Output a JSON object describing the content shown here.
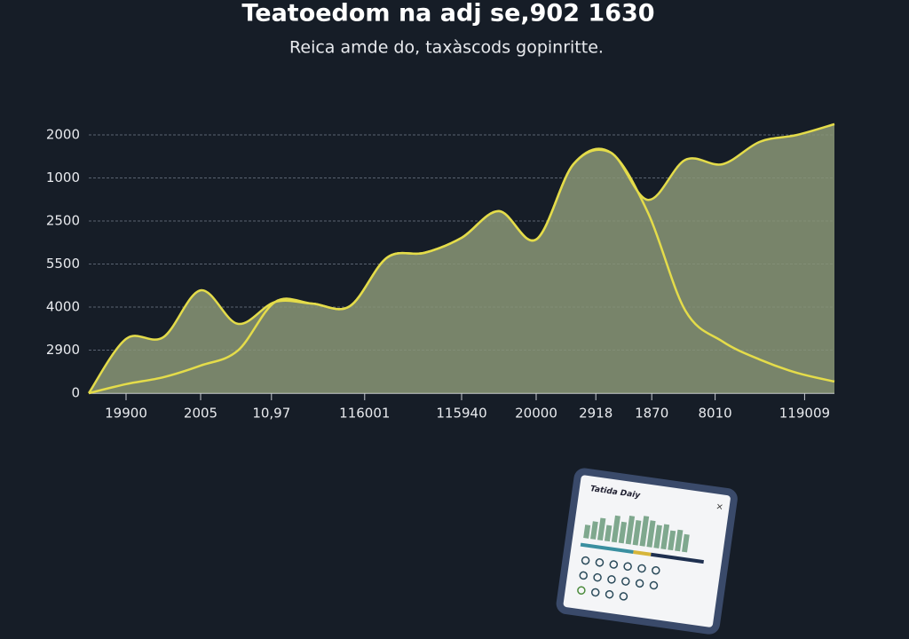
{
  "chart_data": {
    "type": "area",
    "title": "Teatoedom na adj se,902 1630",
    "subtitle": "Reica amde do, taxàscods gopinritte.",
    "x": [
      0,
      1,
      2,
      3,
      4,
      5,
      6,
      7,
      8,
      9,
      10,
      11,
      12,
      13,
      14,
      15,
      16,
      17,
      18,
      19,
      20
    ],
    "xlim": [
      0,
      20
    ],
    "xticks": [
      {
        "value": 1,
        "label": "19900"
      },
      {
        "value": 3,
        "label": "2005"
      },
      {
        "value": 4.9,
        "label": "10,97"
      },
      {
        "value": 7.4,
        "label": "116001"
      },
      {
        "value": 10,
        "label": "115940"
      },
      {
        "value": 12,
        "label": "20000"
      },
      {
        "value": 13.6,
        "label": "2918"
      },
      {
        "value": 15.1,
        "label": "1870"
      },
      {
        "value": 16.8,
        "label": "8010"
      },
      {
        "value": 19.2,
        "label": "119009"
      }
    ],
    "ylim": [
      0,
      6.4
    ],
    "yticks": [
      0,
      {
        "value": 1,
        "label": "2900"
      },
      {
        "value": 2,
        "label": "4000"
      },
      {
        "value": 3,
        "label": "5500"
      },
      {
        "value": 4,
        "label": "2500"
      },
      {
        "value": 5,
        "label": "1000"
      },
      {
        "value": 6,
        "label": "2000"
      }
    ],
    "grid": true,
    "series": [
      {
        "color": "#e4dc4a",
        "fill": "#8a9677",
        "values": [
          0,
          1.26,
          1.3,
          2.39,
          1.61,
          2.12,
          2.08,
          2.02,
          3.15,
          3.26,
          3.61,
          4.23,
          3.57,
          5.32,
          5.59,
          4.49,
          5.42,
          5.32,
          5.84,
          6.0,
          6.25
        ]
      },
      {
        "color": "#e4dc4a",
        "values": [
          0,
          0.21,
          0.37,
          0.64,
          0.99,
          2.12,
          2.08,
          2.02,
          3.15,
          3.26,
          3.61,
          4.23,
          3.57,
          5.32,
          5.59,
          4.19,
          1.92,
          1.2,
          0.78,
          0.47,
          0.27
        ]
      }
    ]
  },
  "card": {
    "title": "Tatida Daiy"
  }
}
